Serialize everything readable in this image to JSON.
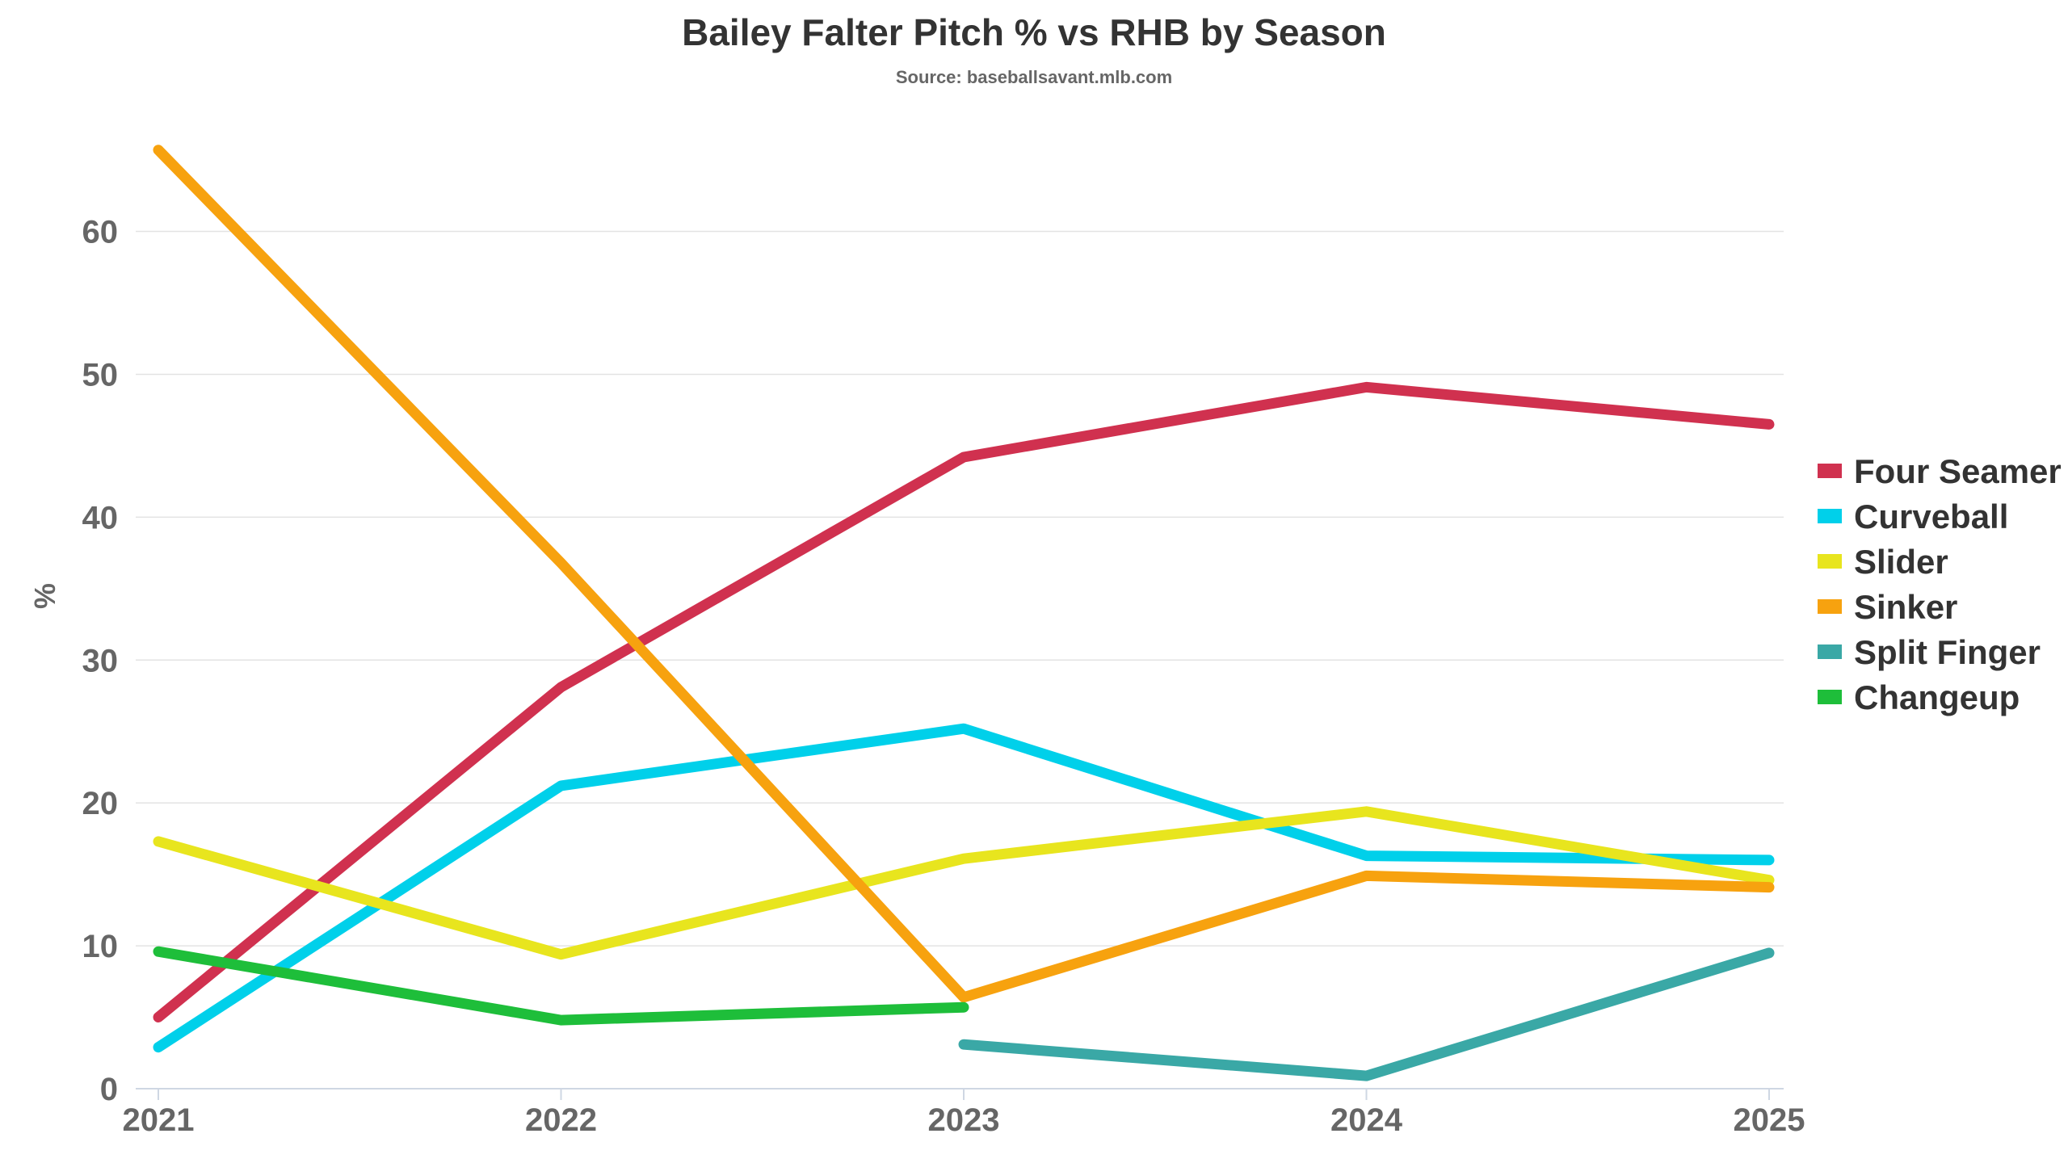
{
  "chart_data": {
    "type": "line",
    "title": "Bailey Falter Pitch % vs RHB by Season",
    "subtitle": "Source: baseballsavant.mlb.com",
    "xlabel": "",
    "ylabel": "%",
    "categories": [
      "2021",
      "2022",
      "2023",
      "2024",
      "2025"
    ],
    "ylim": [
      0,
      68
    ],
    "yticks": [
      0,
      10,
      20,
      30,
      40,
      50,
      60
    ],
    "grid": true,
    "legend_position": "right",
    "series": [
      {
        "name": "Four Seamer",
        "color": "#d0314f",
        "values": [
          5.0,
          28.1,
          44.2,
          49.1,
          46.5
        ]
      },
      {
        "name": "Curveball",
        "color": "#00d0ea",
        "values": [
          2.9,
          21.2,
          25.2,
          16.3,
          16.0
        ]
      },
      {
        "name": "Slider",
        "color": "#e8e51e",
        "values": [
          17.3,
          9.4,
          16.1,
          19.4,
          14.6
        ]
      },
      {
        "name": "Sinker",
        "color": "#f7a20f",
        "values": [
          65.7,
          36.8,
          6.4,
          14.9,
          14.1
        ]
      },
      {
        "name": "Split Finger",
        "color": "#3aa8a6",
        "values": [
          null,
          null,
          3.1,
          0.9,
          9.5
        ]
      },
      {
        "name": "Changeup",
        "color": "#1ebe3a",
        "values": [
          9.6,
          4.8,
          5.7,
          null,
          null
        ]
      }
    ]
  }
}
